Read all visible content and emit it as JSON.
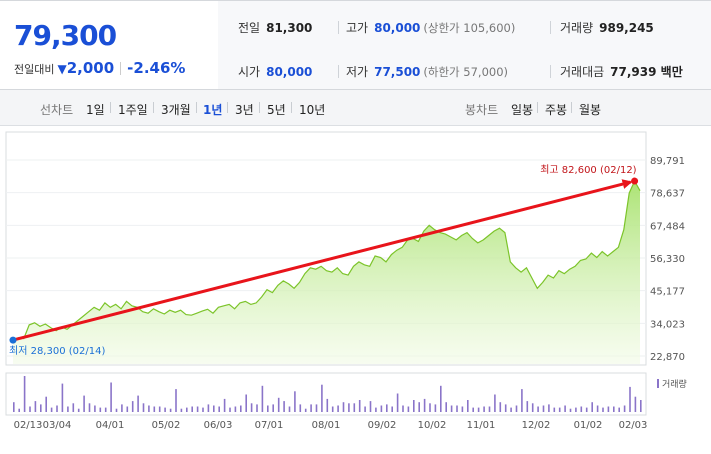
{
  "quote": {
    "price": "79,300",
    "change_label": "전일대비",
    "change_arrow": "▼",
    "change_amount": "2,000",
    "change_percent": "-2.46%",
    "prev_close_label": "전일",
    "prev_close": "81,300",
    "high_label": "고가",
    "high": "80,000",
    "upper_limit": "(상한가 105,600)",
    "volume_label": "거래량",
    "volume": "989,245",
    "open_label": "시가",
    "open": "80,000",
    "low_label": "저가",
    "low": "77,500",
    "lower_limit": "(하한가 57,000)",
    "amount_label": "거래대금",
    "amount": "77,939 백만"
  },
  "tabs": {
    "line_label": "선차트",
    "periods": [
      "1일",
      "1주일",
      "3개월",
      "1년",
      "3년",
      "5년",
      "10년"
    ],
    "selected": "1년",
    "candle_label": "봉차트",
    "candles": [
      "일봉",
      "주봉",
      "월봉"
    ]
  },
  "chart_data": {
    "type": "area",
    "ylim": [
      22870,
      89791
    ],
    "y_ticks": [
      "89,791",
      "78,637",
      "67,484",
      "56,330",
      "45,177",
      "34,023",
      "22,870"
    ],
    "x_ticks": [
      "02/13",
      "03/04",
      "04/01",
      "05/02",
      "06/03",
      "07/01",
      "08/01",
      "09/02",
      "10/02",
      "11/01",
      "12/02",
      "01/02",
      "02/03"
    ],
    "max_annotation": "최고 82,600 (02/12)",
    "min_annotation": "최저 28,300 (02/14)",
    "volume_legend": "거래량",
    "series": [
      {
        "values": [
          28300,
          29100,
          28800,
          33500,
          34200,
          33000,
          33800,
          32500,
          31500,
          32800,
          32000,
          33500,
          35000,
          36500,
          38000,
          39500,
          38500,
          41000,
          39500,
          40500,
          39000,
          41500,
          40000,
          39500,
          38000,
          37500,
          39000,
          38000,
          37200,
          38500,
          37800,
          38500,
          37000,
          36800,
          37500,
          38200,
          38800,
          37500,
          39500,
          40000,
          40500,
          39000,
          41000,
          41500,
          40500,
          41000,
          43000,
          45500,
          44500,
          47000,
          48500,
          47500,
          46000,
          48000,
          51000,
          53000,
          52500,
          53500,
          52000,
          51500,
          53000,
          51000,
          50500,
          53500,
          55000,
          54000,
          53500,
          57000,
          56500,
          55000,
          57500,
          59000,
          60000,
          62500,
          63000,
          62000,
          65500,
          67500,
          66000,
          65000,
          64500,
          63500,
          62500,
          64000,
          65000,
          63000,
          61500,
          62500,
          64000,
          65500,
          66500,
          65000,
          55000,
          53000,
          51500,
          53000,
          49500,
          46000,
          48000,
          50500,
          49500,
          52000,
          51000,
          52500,
          53500,
          55500,
          56000,
          58000,
          56500,
          58500,
          57000,
          58500,
          60000,
          66000,
          78500,
          82600,
          79300
        ]
      }
    ],
    "volumes": [
      9,
      3,
      33,
      5,
      10,
      7,
      14,
      4,
      6,
      26,
      5,
      8,
      3,
      15,
      8,
      6,
      4,
      4,
      27,
      3,
      7,
      5,
      10,
      15,
      8,
      6,
      5,
      5,
      4,
      3,
      21,
      3,
      4,
      5,
      5,
      4,
      7,
      6,
      5,
      12,
      4,
      5,
      6,
      16,
      8,
      7,
      24,
      6,
      7,
      13,
      10,
      5,
      19,
      7,
      3,
      7,
      7,
      25,
      12,
      5,
      6,
      9,
      8,
      8,
      11,
      5,
      10,
      4,
      6,
      7,
      5,
      17,
      6,
      5,
      11,
      9,
      12,
      8,
      7,
      24,
      9,
      6,
      6,
      5,
      11,
      4,
      4,
      5,
      5,
      16,
      9,
      7,
      4,
      6,
      21,
      10,
      8,
      5,
      6,
      7,
      4,
      4,
      6,
      3,
      4,
      5,
      4,
      9,
      6,
      4,
      5,
      5,
      4,
      6,
      23,
      14,
      11
    ]
  }
}
